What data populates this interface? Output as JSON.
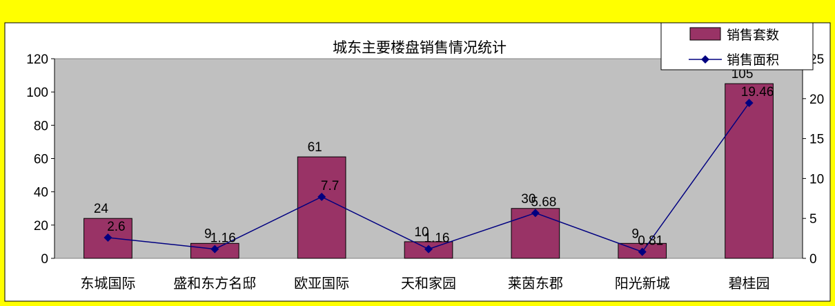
{
  "chart_data": {
    "type": "bar",
    "title": "城东主要楼盘销售情况统计",
    "categories": [
      "东城国际",
      "盛和东方名邸",
      "欧亚国际",
      "天和家园",
      "莱茵东郡",
      "阳光新城",
      "碧桂园"
    ],
    "series": [
      {
        "name": "销售套数",
        "type": "bar",
        "axis": "left",
        "values": [
          24,
          9,
          61,
          10,
          30,
          9,
          105
        ],
        "labels": [
          "24",
          "9",
          "61",
          "10",
          "30",
          "9",
          "105"
        ]
      },
      {
        "name": "销售面积",
        "type": "line",
        "axis": "right",
        "values": [
          2.6,
          1.16,
          7.7,
          1.16,
          5.68,
          0.81,
          19.46
        ],
        "labels": [
          "2.6",
          "1.16",
          "7.7",
          "1.16",
          "5.68",
          "0.81",
          "19.46"
        ]
      }
    ],
    "y_left": {
      "min": 0,
      "max": 120,
      "step": 20
    },
    "y_right": {
      "min": 0,
      "max": 25,
      "step": 5
    },
    "legend_position": "top-right",
    "grid": false,
    "colors": {
      "page_background": "#FFFF00",
      "chart_background": "#FFFFFF",
      "plot_background": "#C0C0C0",
      "bar_fill": "#993366",
      "line": "#000080"
    }
  }
}
